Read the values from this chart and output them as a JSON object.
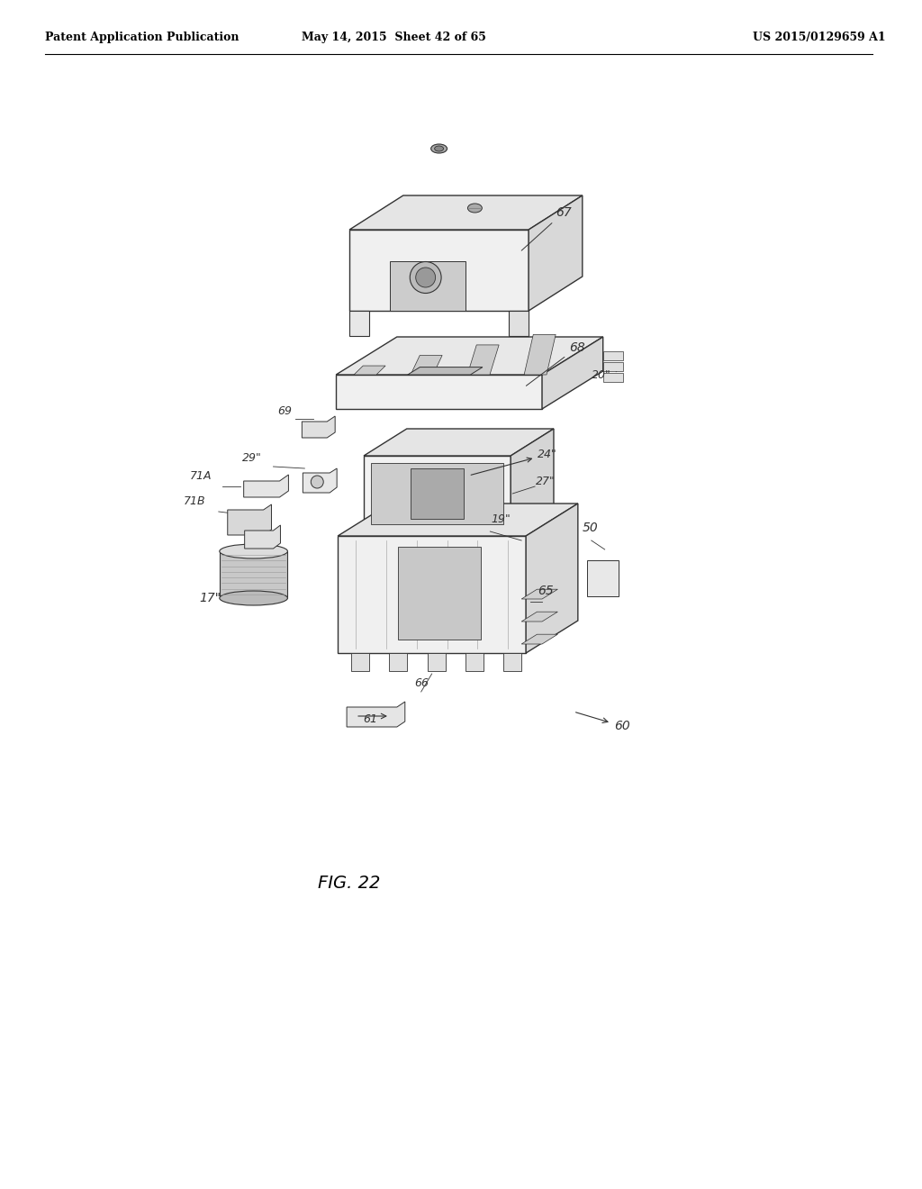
{
  "background_color": "#ffffff",
  "header_left": "Patent Application Publication",
  "header_center": "May 14, 2015  Sheet 42 of 65",
  "header_right": "US 2015/0129659 A1",
  "figure_label": "FIG. 22",
  "header_fontsize": 9,
  "figure_label_fontsize": 14,
  "drawing_color": "#333333"
}
